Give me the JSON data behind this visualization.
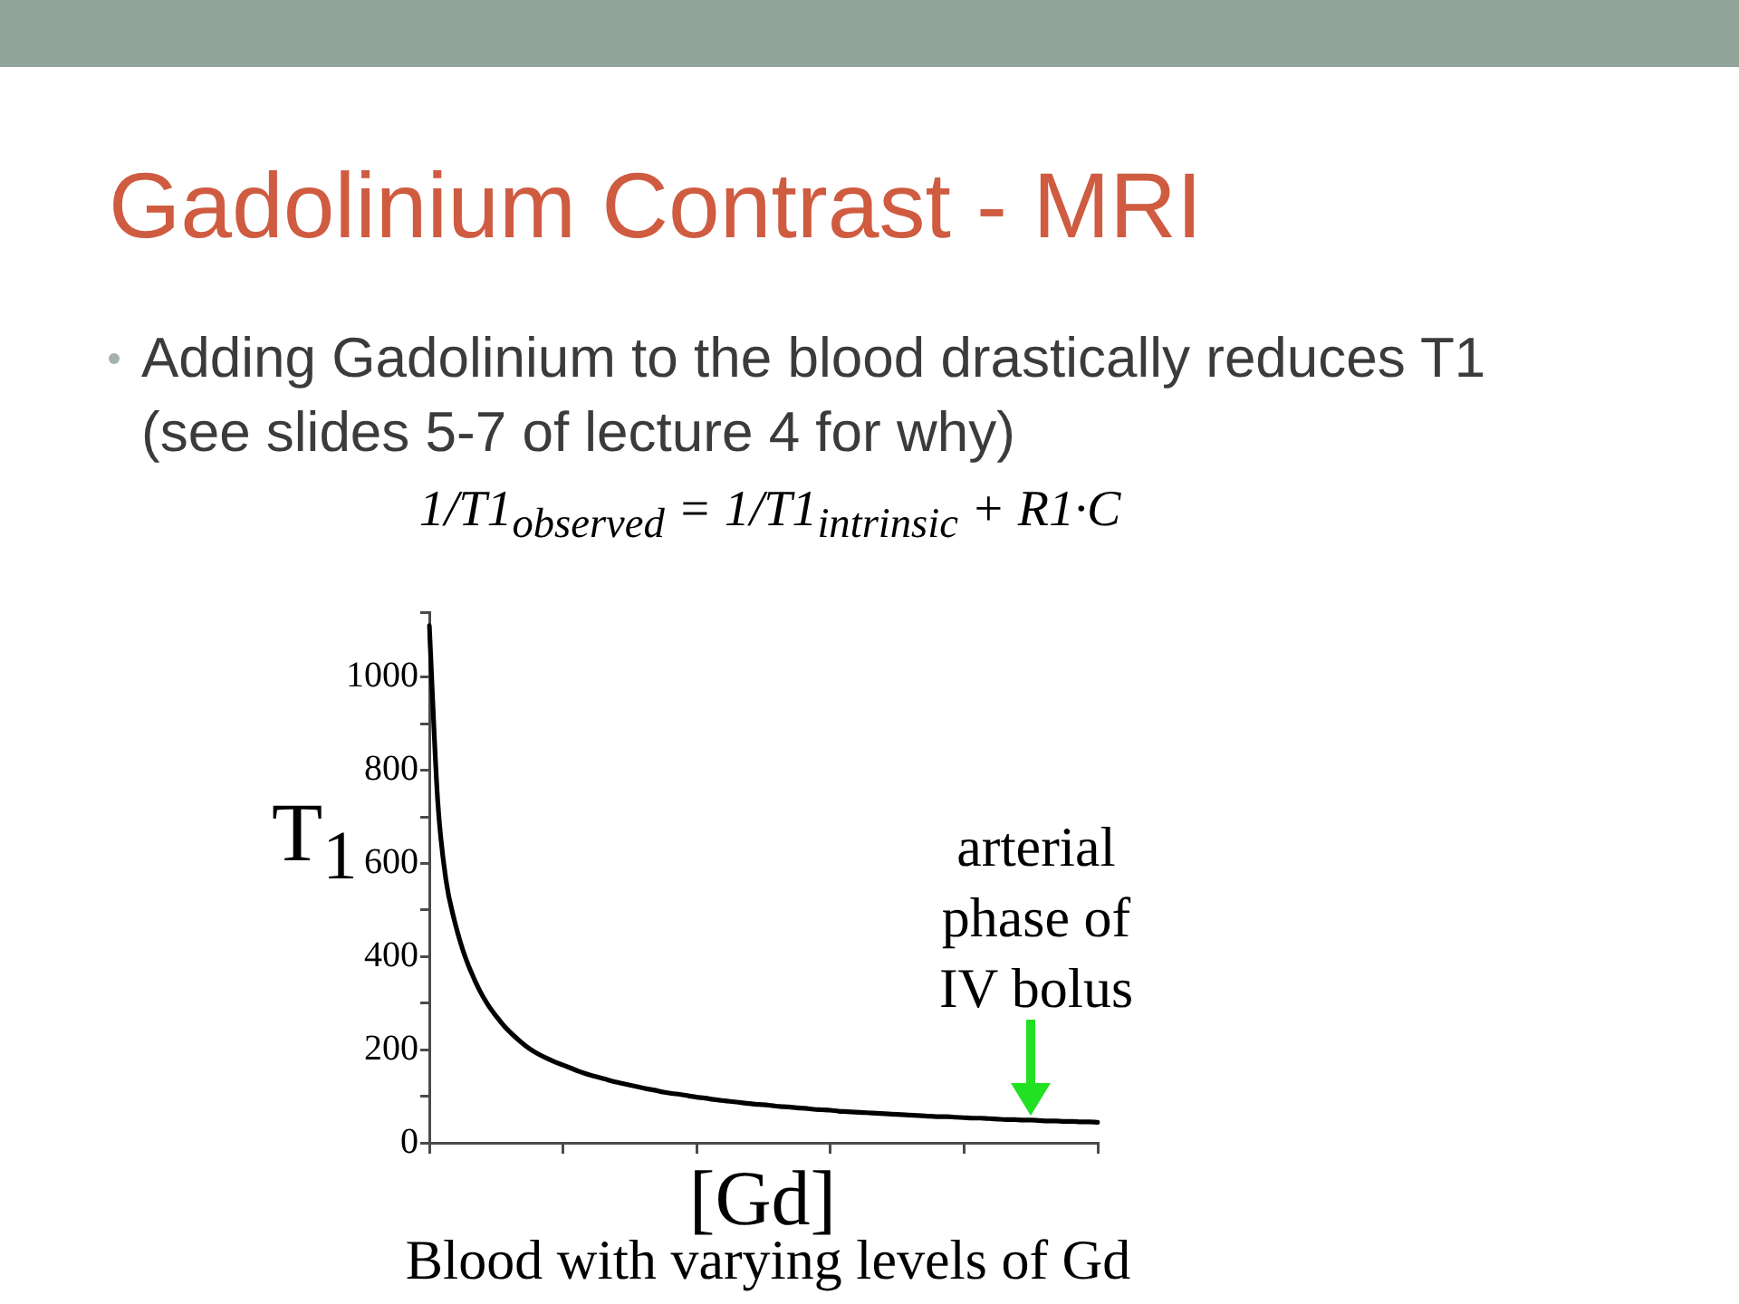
{
  "chart_data": {
    "type": "line",
    "title": "Gadolinium Contrast - MRI",
    "subtitle": "Adding Gadolinium to the blood drastically reduces T1 (see slides 5-7 of lecture 4 for why)",
    "xlabel": "[Gd]",
    "ylabel": "T$_{1}$",
    "annotations": [
      "1/T1$_{observed}$ = 1/T1$_{intrinsic}$ + R1·C",
      "arterial phase of IV bolus",
      "Blood with varying levels of Gd"
    ],
    "categories": [
      null,
      null,
      null,
      null,
      null,
      null,
      null,
      null,
      null,
      null,
      null,
      null,
      null,
      null,
      null,
      null,
      null,
      null,
      null,
      null,
      null,
      null,
      null,
      null,
      null,
      null,
      null,
      null,
      null,
      null,
      null,
      null,
      null,
      null,
      null,
      null,
      null,
      null,
      null,
      null,
      null,
      null,
      null,
      null,
      null,
      null,
      null,
      null,
      null,
      null,
      null,
      null,
      null,
      null,
      null,
      null,
      null,
      null,
      null,
      null,
      null,
      null,
      null,
      null,
      null,
      null,
      null,
      null,
      null,
      null,
      null,
      null,
      null,
      null,
      null,
      null,
      null,
      null,
      null,
      null,
      null
    ],
    "series": [
      {
        "color": "#000000",
        "values": [
          1111,
          736,
          564,
          478,
          415,
          367,
          328,
          297,
          272,
          250,
          232,
          216,
          202,
          191,
          182,
          174,
          167,
          160,
          153,
          147,
          142,
          137,
          132,
          128,
          124,
          120,
          116,
          113,
          109,
          106,
          104,
          101,
          98,
          96,
          93,
          91,
          89,
          87,
          85,
          83,
          82,
          80,
          78,
          77,
          75,
          74,
          72,
          71,
          70,
          68,
          67,
          66,
          65,
          64,
          63,
          62,
          61,
          60,
          59,
          58,
          57,
          56,
          56,
          55,
          54,
          53,
          53,
          52,
          51,
          50,
          50,
          49,
          49,
          48,
          47,
          47,
          46,
          46,
          45,
          45,
          44
        ]
      }
    ],
    "ylim": [
      0,
      1140
    ],
    "yticks": [
      0,
      {
        "value": 100,
        "label": null
      },
      200,
      {
        "value": 300,
        "label": null
      },
      400,
      {
        "value": 500,
        "label": null
      },
      600,
      {
        "value": 700,
        "label": null
      },
      800,
      {
        "value": 900,
        "label": null
      },
      1000,
      {
        "value": 1140,
        "label": null
      }
    ]
  }
}
